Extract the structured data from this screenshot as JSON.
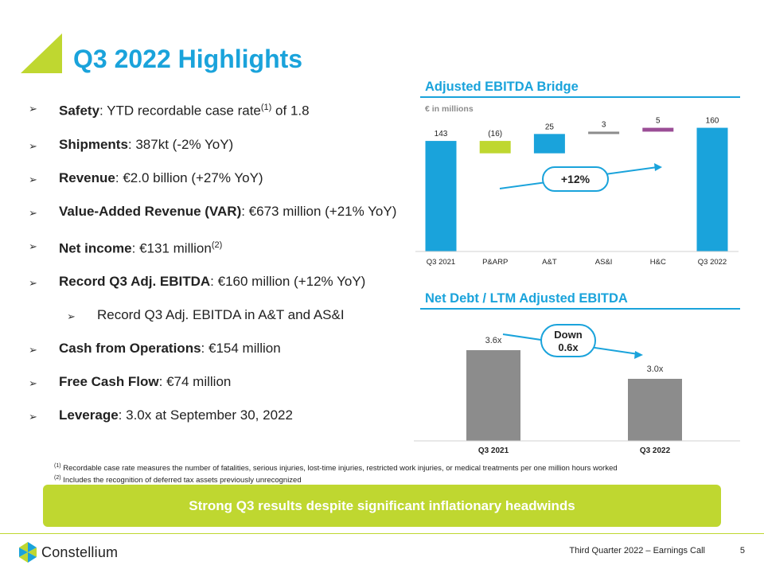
{
  "header": {
    "title": "Q3 2022 Highlights"
  },
  "bullets": [
    {
      "label": "Safety",
      "text": ": YTD recordable case rate",
      "sup": "(1)",
      "text2": " of 1.8"
    },
    {
      "label": "Shipments",
      "text": ": 387kt (-2% YoY)"
    },
    {
      "label": "Revenue",
      "text": ": €2.0 billion (+27% YoY)"
    },
    {
      "label": "Value-Added Revenue (VAR)",
      "text": ": €673 million (+21% YoY)"
    },
    {
      "label": "Net income",
      "text": ": €131 million",
      "sup": "(2)"
    },
    {
      "label": "Record Q3 Adj. EBITDA",
      "text": ": €160 million (+12% YoY)"
    },
    {
      "label": "",
      "text": "Record Q3 Adj. EBITDA in A&T and AS&I"
    },
    {
      "label": "Cash from Operations",
      "text": ": €154 million"
    },
    {
      "label": "Free Cash Flow",
      "text": ": €74 million"
    },
    {
      "label": "Leverage",
      "text": ": 3.0x at September 30, 2022"
    }
  ],
  "footnotes": [
    {
      "num": "(1)",
      "text": " Recordable case rate measures the number of fatalities, serious injuries, lost-time injuries, restricted work injuries, or medical treatments per one million hours worked"
    },
    {
      "num": "(2)",
      "text": " Includes the recognition of deferred tax assets previously unrecognized"
    }
  ],
  "banner": {
    "text": "Strong Q3 results despite significant inflationary headwinds"
  },
  "footer": {
    "company": "Constellium",
    "label": "Third Quarter 2022 – Earnings Call",
    "page": "5"
  },
  "chart_data": [
    {
      "type": "bar",
      "title": "Adjusted EBITDA Bridge",
      "subtitle": "€ in millions",
      "categories": [
        "Q3 2021",
        "P&ARP",
        "A&T",
        "AS&I",
        "H&C",
        "Q3 2022"
      ],
      "values": [
        143,
        -16,
        25,
        3,
        5,
        160
      ],
      "value_labels": [
        "143",
        "(16)",
        "25",
        "3",
        "5",
        "160"
      ],
      "colors": [
        "#1aa3db",
        "#bfd730",
        "#1aa3db",
        "#8c8c8c",
        "#9b4e96",
        "#1aa3db"
      ],
      "annotation": "+12%",
      "waterfall": true,
      "ylim": [
        0,
        175
      ]
    },
    {
      "type": "bar",
      "title": "Net Debt / LTM Adjusted EBITDA",
      "categories": [
        "Q3 2021",
        "Q3 2022"
      ],
      "values": [
        3.6,
        3.0
      ],
      "value_labels": [
        "3.6x",
        "3.0x"
      ],
      "colors": [
        "#8c8c8c",
        "#8c8c8c"
      ],
      "annotation": [
        "Down",
        "0.6x"
      ],
      "ylim": [
        1.7,
        4.1
      ]
    }
  ]
}
